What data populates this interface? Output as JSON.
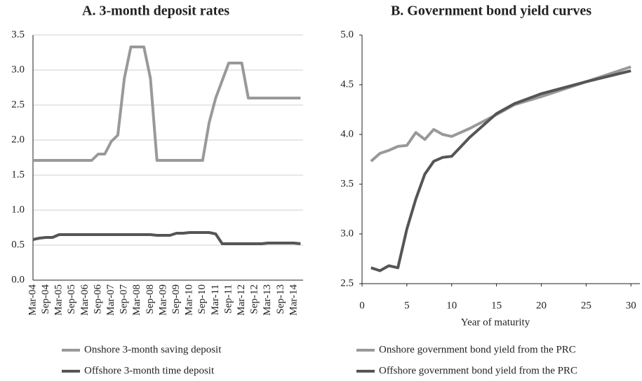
{
  "chart_data": [
    {
      "type": "line",
      "title": "A. 3-month deposit rates",
      "categories": [
        "Mar-04",
        null,
        "Sep-04",
        null,
        "Mar-05",
        null,
        "Sep-05",
        null,
        "Mar-06",
        null,
        "Sep-06",
        null,
        "Mar-07",
        null,
        "Sep-07",
        null,
        "Mar-08",
        null,
        "Sep-08",
        null,
        "Mar-09",
        null,
        "Sep-09",
        null,
        "Mar-10",
        null,
        "Sep-10",
        null,
        "Mar-11",
        null,
        "Sep-11",
        null,
        "Mar-12",
        null,
        "Sep-12",
        null,
        "Mar-13",
        null,
        "Sep-13",
        null,
        "Mar-14",
        null
      ],
      "series": [
        {
          "name": "Onshore 3-month saving deposit",
          "color": "#999999",
          "values": [
            1.71,
            1.71,
            1.71,
            1.71,
            1.71,
            1.71,
            1.71,
            1.71,
            1.71,
            1.71,
            1.8,
            1.8,
            1.98,
            2.07,
            2.88,
            3.33,
            3.33,
            3.33,
            2.88,
            1.71,
            1.71,
            1.71,
            1.71,
            1.71,
            1.71,
            1.71,
            1.71,
            2.25,
            2.6,
            2.85,
            3.1,
            3.1,
            3.1,
            2.6,
            2.6,
            2.6,
            2.6,
            2.6,
            2.6,
            2.6,
            2.6,
            2.6
          ]
        },
        {
          "name": "Offshore 3-month time deposit",
          "color": "#555555",
          "values": [
            0.58,
            0.6,
            0.61,
            0.61,
            0.65,
            0.65,
            0.65,
            0.65,
            0.65,
            0.65,
            0.65,
            0.65,
            0.65,
            0.65,
            0.65,
            0.65,
            0.65,
            0.65,
            0.65,
            0.64,
            0.64,
            0.64,
            0.67,
            0.67,
            0.68,
            0.68,
            0.68,
            0.68,
            0.66,
            0.52,
            0.52,
            0.52,
            0.52,
            0.52,
            0.52,
            0.52,
            0.53,
            0.53,
            0.53,
            0.53,
            0.53,
            0.52
          ]
        }
      ],
      "ylim": [
        0,
        3.5
      ],
      "yticks": [
        {
          "value": 0,
          "label": "0.0"
        },
        {
          "value": 0.5,
          "label": "0.5"
        },
        {
          "value": 1,
          "label": "1.0"
        },
        {
          "value": 1.5,
          "label": "1.5"
        },
        {
          "value": 2,
          "label": "2.0"
        },
        {
          "value": 2.5,
          "label": "2.5"
        },
        {
          "value": 3,
          "label": "3.0"
        },
        {
          "value": 3.5,
          "label": "3.5"
        }
      ],
      "grid": true,
      "legend": "bottom"
    },
    {
      "type": "line",
      "title": "B. Government bond yield curves",
      "xlabel": "Year of maturity",
      "x": [
        1,
        2,
        3,
        4,
        5,
        6,
        7,
        8,
        9,
        10,
        12,
        15,
        17,
        20,
        25,
        30
      ],
      "series": [
        {
          "name": "Onshore government bond yield from the PRC",
          "color": "#999999",
          "values": [
            3.73,
            3.81,
            3.84,
            3.88,
            3.89,
            4.02,
            3.95,
            4.05,
            4.0,
            3.98,
            4.06,
            4.2,
            4.3,
            4.38,
            4.53,
            4.68
          ]
        },
        {
          "name": "Offshore government bond yield from the PRC",
          "color": "#555555",
          "values": [
            2.66,
            2.63,
            2.68,
            2.66,
            3.05,
            3.35,
            3.6,
            3.73,
            3.77,
            3.78,
            3.97,
            4.21,
            4.31,
            4.41,
            4.53,
            4.64
          ]
        }
      ],
      "xlim": [
        0,
        31
      ],
      "xticks": [
        0,
        5,
        10,
        15,
        20,
        25,
        30
      ],
      "ylim": [
        2.5,
        5
      ],
      "yticks": [
        {
          "value": 2.5,
          "label": "2.5"
        },
        {
          "value": 3,
          "label": "3.0"
        },
        {
          "value": 3.5,
          "label": "3.5"
        },
        {
          "value": 4,
          "label": "4.0"
        },
        {
          "value": 4.5,
          "label": "4.5"
        },
        {
          "value": 5,
          "label": "5.0"
        }
      ],
      "grid": false,
      "legend": "bottom"
    }
  ]
}
